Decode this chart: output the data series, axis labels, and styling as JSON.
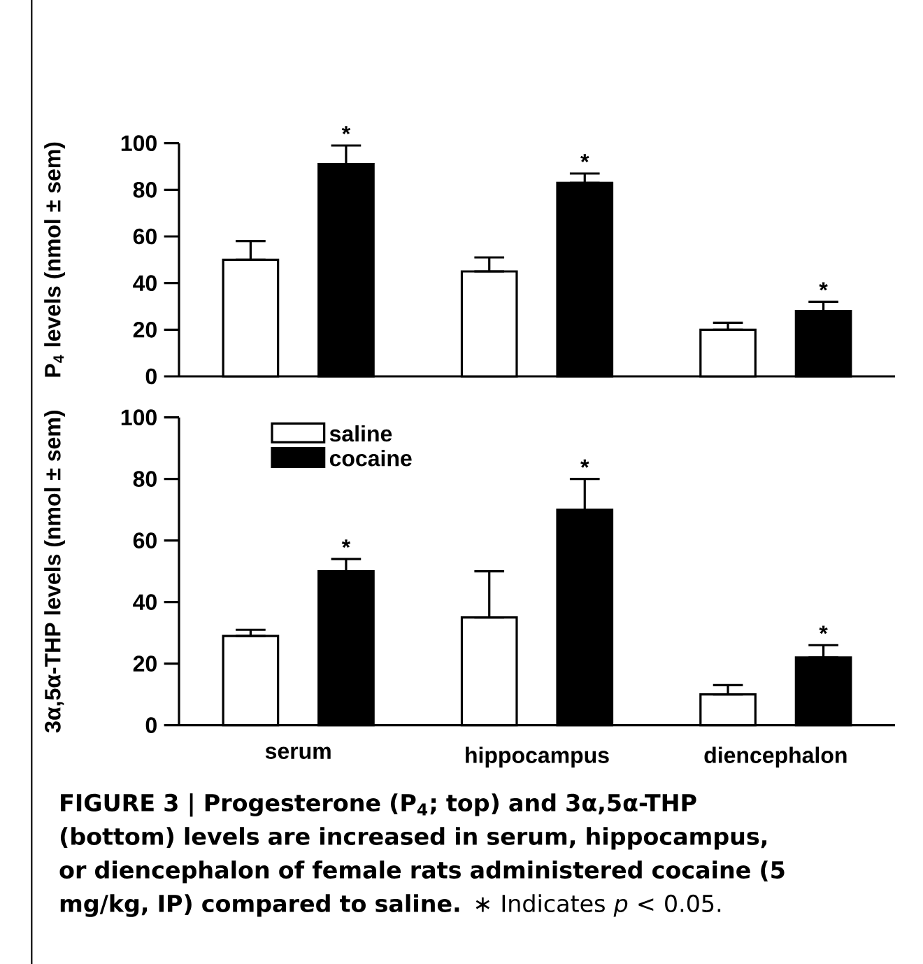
{
  "chart_data": [
    {
      "type": "bar",
      "ylabel": "P$_{4}$ levels (nmol ± sem)",
      "categories": [
        null,
        null,
        null
      ],
      "tick_labels": "y",
      "ylim": [
        0,
        100
      ],
      "yticks": [
        0,
        20,
        40,
        60,
        80,
        100
      ],
      "legend": false,
      "series": [
        {
          "color": "#ffffff",
          "values": [
            50,
            45,
            20
          ],
          "errors": [
            [
              50,
              58
            ],
            [
              45,
              51
            ],
            [
              20,
              23
            ]
          ]
        },
        {
          "color": "#000000",
          "values": [
            91,
            83,
            28
          ],
          "errors": [
            [
              91,
              99
            ],
            [
              83,
              87
            ],
            [
              28,
              32
            ]
          ]
        }
      ],
      "annotations": [
        "*",
        "*",
        "*"
      ]
    },
    {
      "type": "bar",
      "ylabel": "3α,5α-THP levels (nmol ± sem)",
      "categories": [
        "serum",
        "hippocampus",
        "diencephalon"
      ],
      "ylim": [
        0,
        100
      ],
      "yticks": [
        0,
        20,
        40,
        60,
        80,
        100
      ],
      "legend": "top left",
      "series": [
        {
          "name": "saline",
          "color": "#ffffff",
          "values": [
            29,
            35,
            10
          ],
          "errors": [
            [
              29,
              31
            ],
            [
              35,
              50
            ],
            [
              10,
              13
            ]
          ]
        },
        {
          "name": "cocaine",
          "color": "#000000",
          "values": [
            50,
            70,
            22
          ],
          "errors": [
            [
              50,
              54
            ],
            [
              70,
              80
            ],
            [
              22,
              26
            ]
          ]
        }
      ],
      "annotations": [
        "*",
        "*",
        "*",
        "**FIGURE 3 | Progesterone (P$_{4}$; top) and 3α,5α-THP (bottom) levels are increased in serum, hippocampus, or diencephalon of female rats administered cocaine (5 mg/kg, IP) compared to saline.** ∗ Indicates *p* < 0.05."
      ]
    }
  ]
}
